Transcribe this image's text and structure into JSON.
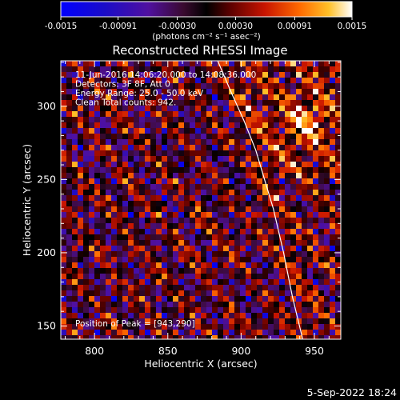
{
  "chart_data": {
    "type": "heatmap",
    "title": "Reconstructed RHESSI Image",
    "xlabel": "Heliocentric X (arcsec)",
    "ylabel": "Heliocentric Y (arcsec)",
    "xlim": [
      777,
      968
    ],
    "ylim": [
      141,
      331
    ],
    "x_ticks": [
      800,
      850,
      900,
      950
    ],
    "y_ticks": [
      150,
      200,
      250,
      300
    ],
    "colorbar": {
      "range": [
        -0.0015,
        0.0015
      ],
      "tick_values": [
        -0.0015,
        -0.00091,
        -0.0003,
        0.0003,
        0.00091,
        0.0015
      ],
      "tick_labels": [
        "-0.0015",
        "-0.00091",
        "-0.00030",
        "0.00030",
        "0.00091",
        "0.0015"
      ],
      "unit_label": "(photons cm⁻² s⁻¹ asec⁻²)"
    },
    "annotations": [
      "11-Jun-2016 14:06:20.000 to 14:08:36.000",
      "Detectors: 3F 8F, Att 0",
      "Energy Range: 25.0 - 50.0 keV",
      "Clean      Total counts: 942."
    ],
    "peak_label": "Position of Peak = [943,290]",
    "peak": [
      943,
      290
    ],
    "limb_curve": [
      [
        884,
        331
      ],
      [
        893,
        310
      ],
      [
        902,
        290
      ],
      [
        910,
        270
      ],
      [
        916,
        250
      ],
      [
        922,
        230
      ],
      [
        929,
        200
      ],
      [
        935,
        170
      ],
      [
        942,
        141
      ]
    ],
    "footer_date": "5-Sep-2022 18:24",
    "colors": {
      "background": "#000000",
      "text": "#ffffff",
      "limb": "#ffffff"
    }
  }
}
